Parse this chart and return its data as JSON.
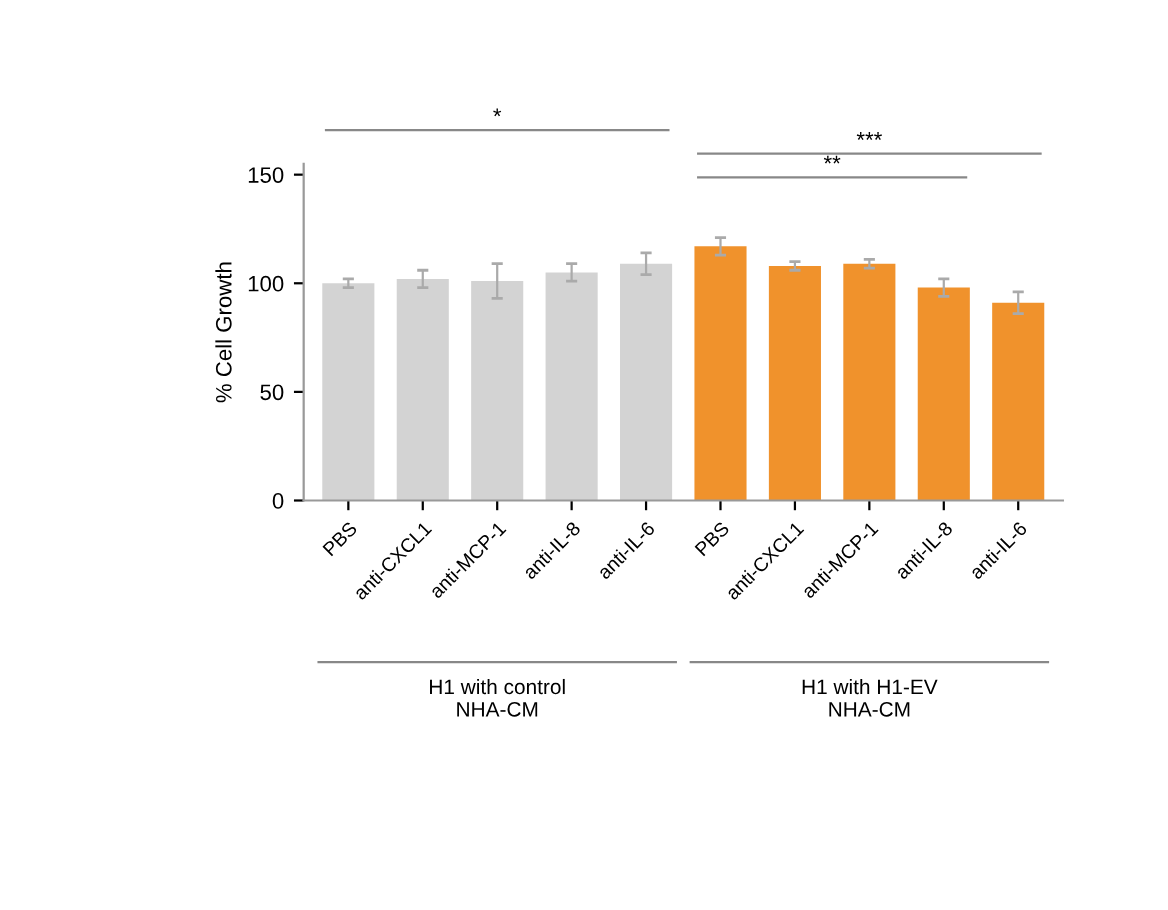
{
  "chart_data": {
    "type": "bar",
    "ylabel": "% Cell Growth",
    "categories": [
      "PBS",
      "anti-CXCL1",
      "anti-MCP-1",
      "anti-IL-8",
      "anti-IL-6",
      "PBS",
      "anti-CXCL1",
      "anti-MCP-1",
      "anti-IL-8",
      "anti-IL-6"
    ],
    "values": [
      100,
      102,
      101,
      105,
      109,
      117,
      108,
      109,
      98,
      91
    ],
    "errors": [
      2,
      4,
      8,
      4,
      5,
      4,
      2,
      2,
      4,
      5
    ],
    "colors": [
      "#d3d3d3",
      "#d3d3d3",
      "#d3d3d3",
      "#d3d3d3",
      "#d3d3d3",
      "#f0922c",
      "#f0922c",
      "#f0922c",
      "#f0922c",
      "#f0922c"
    ],
    "ylim": [
      0,
      155
    ],
    "yticks": [
      0,
      50,
      100,
      150
    ],
    "grid": false,
    "legend": false,
    "annotations": [
      "*",
      "***",
      "**",
      "H1 with control\nNHA-CM",
      "H1 with H1-EV\nNHA-CM"
    ]
  }
}
